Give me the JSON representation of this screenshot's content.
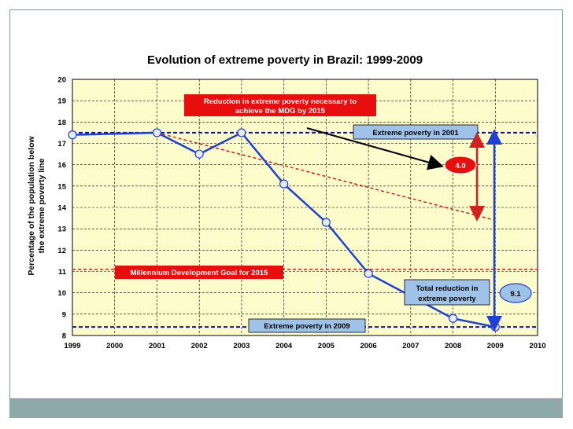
{
  "chart_data": {
    "type": "line",
    "title": "Evolution of extreme poverty in Brazil: 1999-2009",
    "ylabel": [
      "Percentage of the population below",
      "the extreme poverty line"
    ],
    "xlabel": "",
    "xlim": [
      1999,
      2010
    ],
    "ylim": [
      8,
      20
    ],
    "x_ticks": [
      "1999",
      "2000",
      "2001",
      "2002",
      "2003",
      "2004",
      "2005",
      "2006",
      "2007",
      "2008",
      "2009",
      "2010"
    ],
    "y_ticks": [
      "8",
      "9",
      "10",
      "11",
      "12",
      "13",
      "14",
      "15",
      "16",
      "17",
      "18",
      "19",
      "20"
    ],
    "grid": true,
    "series": [
      {
        "name": "Extreme poverty",
        "x": [
          1999,
          2001,
          2002,
          2003,
          2004,
          2005,
          2006,
          2008,
          2009
        ],
        "y": [
          17.4,
          17.5,
          16.5,
          17.5,
          15.1,
          13.3,
          10.9,
          8.8,
          8.4
        ],
        "color": "#1f3fd6"
      }
    ],
    "reference_lines": {
      "extreme_2001": {
        "y": 17.5,
        "label": "Extreme poverty  in 2001"
      },
      "extreme_2009": {
        "y": 8.4,
        "label": "Extreme poverty  in 2009"
      },
      "mdg_2015": {
        "y": 11.1,
        "label": "Millennium Development Goal  for 2015"
      },
      "mdg_trend": {
        "x1": 2001,
        "y1": 17.5,
        "x2": 2009,
        "y2": 13.4
      }
    },
    "annotations": {
      "mdg_reduction": [
        "Reduction  in extreme poverty  necessary to",
        "achieve the MDG by 2015"
      ],
      "gap_value": "4.0",
      "total_reduction": [
        "Total  reduction  in",
        "extreme poverty"
      ],
      "total_value": "9.1"
    },
    "colors": {
      "plot_bg": "#fdfccb",
      "blue": "#1f3fd6",
      "navy": "#14148c",
      "red": "#d42020",
      "box_blue": "#9fc2e8"
    }
  }
}
